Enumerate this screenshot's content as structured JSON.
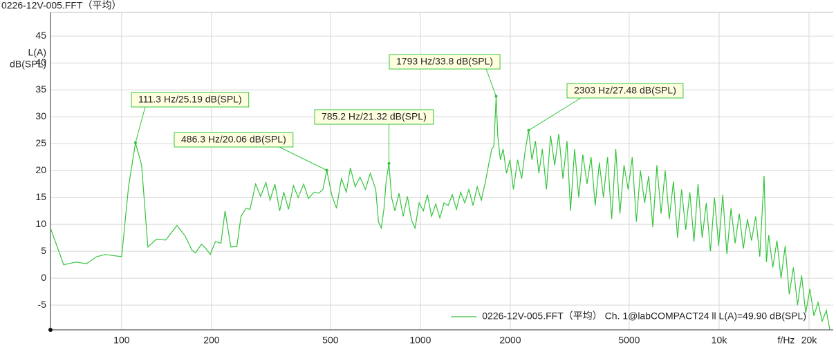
{
  "chart_data": {
    "type": "line",
    "title": "0226-12V-005.FFT（平均）",
    "ylabel": [
      "L(A)",
      "dB(SPL)"
    ],
    "xlabel": "f/Hz",
    "xscale": "log",
    "grid": true,
    "legend": "lower right",
    "xlim": [
      57.8,
      24100
    ],
    "ylim": [
      -9.6,
      49.4
    ],
    "xticks": [
      100,
      200,
      500,
      1000,
      2000,
      5000,
      {
        "value": 10000,
        "label": "10k"
      },
      {
        "value": 20000,
        "label": "20k"
      }
    ],
    "yticks": [
      -5,
      0,
      5,
      10,
      15,
      20,
      25,
      30,
      35,
      40,
      45
    ],
    "x": [
      57.8,
      64,
      70.3,
      76.2,
      82.5,
      88,
      100,
      105.5,
      111.3,
      116.7,
      122.4,
      130.5,
      140.6,
      153.2,
      163.3,
      172,
      176.6,
      185,
      191,
      198,
      206,
      215,
      222,
      232,
      243,
      251,
      261,
      269,
      281,
      292,
      304,
      314,
      326,
      338,
      349,
      362,
      376,
      390,
      407,
      422,
      441,
      457,
      472,
      486.3,
      505,
      524,
      544,
      565,
      583,
      605,
      628,
      655,
      680,
      709,
      724,
      740,
      756,
      768,
      785.2,
      801,
      822,
      848,
      876,
      905,
      934,
      960,
      991,
      1023,
      1056,
      1090,
      1126,
      1162,
      1200,
      1239,
      1279,
      1321,
      1364,
      1408,
      1454,
      1501,
      1550,
      1600,
      1652,
      1698,
      1734,
      1762,
      1793,
      1815,
      1853,
      1893,
      1943,
      1995,
      2049,
      2115,
      2183,
      2241,
      2303,
      2364,
      2428,
      2493,
      2560,
      2643,
      2728,
      2816,
      2907,
      3001,
      3097,
      3181,
      3284,
      3390,
      3499,
      3612,
      3728,
      3848,
      3972,
      4100,
      4233,
      4369,
      4510,
      4655,
      4805,
      4960,
      5120,
      5285,
      5455,
      5631,
      5812,
      6000,
      6193,
      6393,
      6599,
      6811,
      7031,
      7257,
      7491,
      7732,
      7981,
      8239,
      8504,
      8778,
      9061,
      9353,
      9654,
      9965,
      10286,
      10618,
      10960,
      11313,
      11678,
      12054,
      12442,
      12843,
      13257,
      13685,
      14144,
      14400,
      14656,
      15129,
      15616,
      16119,
      16639,
      17175,
      17728,
      18300,
      18889,
      19498,
      20126,
      20774,
      21443,
      22134,
      22847,
      23452
    ],
    "series": [
      {
        "name": "0226-12V-005.FFT（平均） Ch. 1@labCOMPACT24 ll L(A)=49.90 dB(SPL)",
        "color": "#33c43a",
        "values": [
          9.3,
          2.5,
          3.0,
          2.7,
          4.0,
          4.4,
          4.0,
          17,
          25.19,
          21,
          5.8,
          7.2,
          7.1,
          9.8,
          7.8,
          5.2,
          4.7,
          6.3,
          5.6,
          4.4,
          6.8,
          6.5,
          12.5,
          5.8,
          5.9,
          11.5,
          13,
          12.8,
          17.5,
          15.2,
          17.8,
          14.5,
          17.5,
          12.5,
          16,
          12.8,
          17.2,
          15,
          17.5,
          14.8,
          16,
          15.8,
          16.5,
          20.06,
          15.5,
          13,
          18.5,
          16,
          20.5,
          17,
          18.8,
          16.5,
          19.5,
          16.5,
          10.5,
          9.3,
          13,
          18,
          21.32,
          15,
          12.5,
          15.8,
          11.5,
          15.2,
          10.8,
          9.3,
          14,
          12.5,
          15.5,
          11.5,
          13.8,
          11.2,
          14,
          13.5,
          15.5,
          12.8,
          16,
          14,
          16.5,
          13.5,
          17,
          14.5,
          18,
          21.5,
          24,
          24.5,
          33.8,
          26.5,
          22,
          24,
          19.5,
          22,
          16.5,
          22,
          18.5,
          23.5,
          27.48,
          22,
          25.5,
          19.5,
          24,
          16.5,
          26.5,
          21,
          26.8,
          18.5,
          25.5,
          12.5,
          24,
          15,
          23,
          17.5,
          22.5,
          13.5,
          21.5,
          15,
          22.5,
          11,
          24,
          12,
          21,
          16.5,
          22.5,
          10.5,
          20,
          14,
          19,
          9.5,
          21,
          12,
          20,
          11,
          18,
          7.5,
          16.5,
          9,
          16,
          6.8,
          17.5,
          7.5,
          14,
          5,
          15,
          6,
          15.5,
          4.5,
          13,
          6.5,
          12,
          5.5,
          11,
          7,
          11.5,
          4,
          19,
          3,
          8,
          2,
          7,
          0,
          6,
          -3,
          2,
          -5,
          0.5,
          -6.5,
          -2,
          -7,
          -4.5,
          -8,
          -6,
          -9.5
        ]
      }
    ],
    "annotations": [
      {
        "text": "111.3 Hz/25.19 dB(SPL)",
        "x": 111.3,
        "y": 25.19
      },
      {
        "text": "486.3 Hz/20.06 dB(SPL)",
        "x": 486.3,
        "y": 20.06
      },
      {
        "text": "785.2 Hz/21.32 dB(SPL)",
        "x": 785.2,
        "y": 21.32
      },
      {
        "text": "1793 Hz/33.8 dB(SPL)",
        "x": 1793,
        "y": 33.8
      },
      {
        "text": "2303 Hz/27.48 dB(SPL)",
        "x": 2303,
        "y": 27.48
      }
    ]
  }
}
